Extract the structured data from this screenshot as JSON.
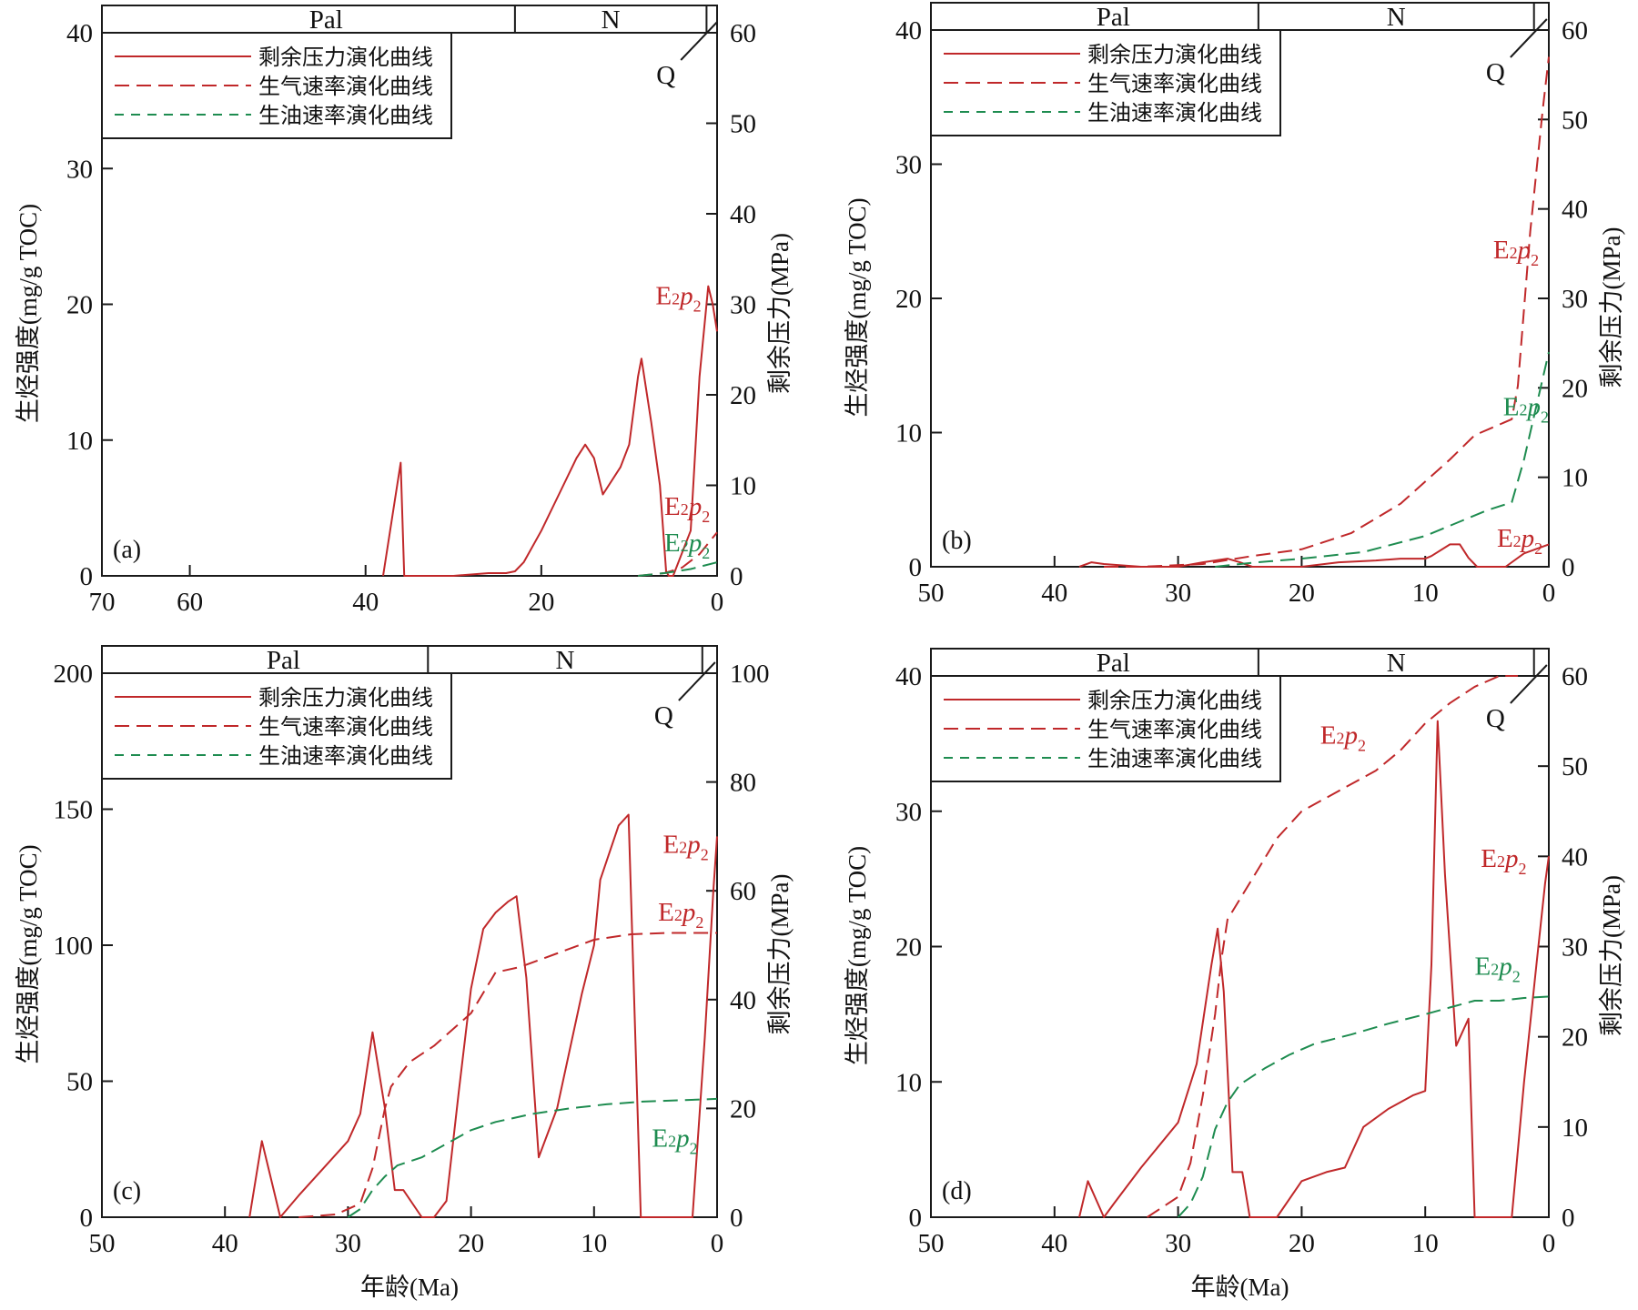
{
  "colors": {
    "pressure": "#c0282a",
    "gas": "#c0282a",
    "oil": "#1e8c50",
    "frame": "#1a1a1a"
  },
  "shared_text": {
    "left_ylabel": "生烃强度(mg/g TOC)",
    "right_ylabel": "剩余压力(MPa)",
    "xlabel": "年龄(Ma)",
    "strip_pal": "Pal",
    "strip_n": "N",
    "strip_q": "Q",
    "legend_pressure": "剩余压力演化曲线",
    "legend_gas": "生气速率演化曲线",
    "legend_oil": "生油速率演化曲线"
  },
  "chart_data": [
    {
      "type": "line",
      "panel_label": "(a)",
      "xlabel": "",
      "left_ylabel": "生烃强度(mg/g TOC)",
      "right_ylabel": "剩余压力(MPa)",
      "xlim": [
        70,
        0
      ],
      "xticks": [
        70,
        60,
        40,
        20,
        0
      ],
      "ylim_left": [
        0,
        40
      ],
      "yticks_left": [
        0,
        10,
        20,
        30,
        40
      ],
      "ylim_right": [
        0,
        60
      ],
      "yticks_right": [
        0,
        10,
        20,
        30,
        40,
        50,
        60
      ],
      "strip": [
        {
          "label": "Pal",
          "from": 66,
          "to": 23
        },
        {
          "label": "N",
          "from": 23,
          "to": 1.2
        },
        {
          "label": "",
          "from": 1.2,
          "to": 0
        }
      ],
      "legend": "top-left",
      "series": [
        {
          "name": "剩余压力演化曲线",
          "style": "solid",
          "color": "pressure",
          "axis": "right",
          "x": [
            38,
            36,
            35.6,
            33,
            30,
            26,
            24,
            23,
            22,
            20,
            18,
            16,
            15,
            14,
            13,
            11,
            10,
            9,
            8.6,
            7.5,
            6.5,
            5.8,
            5.5,
            5,
            3,
            2,
            1,
            0.5,
            0
          ],
          "y": [
            0,
            12.5,
            0,
            0,
            0,
            0.3,
            0.3,
            0.5,
            1.5,
            5,
            9,
            13,
            14.5,
            13,
            9,
            12,
            14.5,
            22,
            24,
            17,
            10,
            0.5,
            0,
            0,
            5,
            22,
            32,
            30,
            27
          ]
        },
        {
          "name": "生气速率演化曲线",
          "style": "dashed",
          "color": "gas",
          "axis": "left",
          "x": [
            9,
            6,
            4,
            2,
            0
          ],
          "y": [
            0,
            0.2,
            0.6,
            1.6,
            3.2
          ]
        },
        {
          "name": "生油速率演化曲线",
          "style": "dashed",
          "color": "oil",
          "axis": "left",
          "x": [
            9,
            6,
            3,
            0
          ],
          "y": [
            0,
            0.2,
            0.5,
            1.0
          ]
        }
      ],
      "annotations": [
        {
          "base": "E",
          "sub": "2",
          "italic": "p",
          "sub2": "2",
          "color": "pressure",
          "x": 7,
          "y": 30,
          "axis": "right"
        },
        {
          "base": "E",
          "sub": "2",
          "italic": "p",
          "sub2": "2",
          "color": "gas",
          "x": 6,
          "y": 4.5,
          "axis": "left"
        },
        {
          "base": "E",
          "sub": "2",
          "italic": "p",
          "sub2": "2",
          "color": "oil",
          "x": 6,
          "y": 1.8,
          "axis": "left"
        }
      ]
    },
    {
      "type": "line",
      "panel_label": "(b)",
      "xlabel": "",
      "left_ylabel": "生烃强度(mg/g TOC)",
      "right_ylabel": "剩余压力(MPa)",
      "xlim": [
        50,
        0
      ],
      "xticks": [
        50,
        40,
        30,
        20,
        10,
        0
      ],
      "ylim_left": [
        0,
        40
      ],
      "yticks_left": [
        0,
        10,
        20,
        30,
        40
      ],
      "ylim_right": [
        0,
        60
      ],
      "yticks_right": [
        0,
        10,
        20,
        30,
        40,
        50,
        60
      ],
      "strip": [
        {
          "label": "Pal",
          "from": 47,
          "to": 23.5
        },
        {
          "label": "N",
          "from": 23.5,
          "to": 1.2
        },
        {
          "label": "",
          "from": 1.2,
          "to": 0
        }
      ],
      "legend": "top-left",
      "series": [
        {
          "name": "剩余压力演化曲线",
          "style": "solid",
          "color": "pressure",
          "axis": "right",
          "x": [
            38,
            37,
            36,
            33,
            30,
            28,
            26,
            25,
            24,
            22,
            20,
            17,
            14,
            12,
            10,
            9.5,
            8,
            7.2,
            6.5,
            5.8,
            3.5,
            2,
            0
          ],
          "y": [
            0,
            0.5,
            0.3,
            0,
            0,
            0.5,
            0.9,
            0.5,
            0,
            0,
            0,
            0.5,
            0.7,
            0.9,
            0.9,
            1.2,
            2.5,
            2.5,
            1,
            0,
            0,
            1.5,
            2.5
          ]
        },
        {
          "name": "生气速率演化曲线",
          "style": "dashed",
          "color": "gas",
          "axis": "left",
          "x": [
            36,
            33,
            28,
            24,
            20,
            16,
            12,
            8,
            6,
            3,
            2.5,
            1.5,
            0.5,
            0
          ],
          "y": [
            0,
            0,
            0.2,
            0.8,
            1.3,
            2.5,
            4.7,
            8,
            9.8,
            11,
            13.5,
            25,
            34,
            38
          ]
        },
        {
          "name": "生油速率演化曲线",
          "style": "dashed",
          "color": "oil",
          "axis": "left",
          "x": [
            27,
            24,
            20,
            15,
            10,
            5,
            3,
            2,
            1,
            0
          ],
          "y": [
            0,
            0.3,
            0.6,
            1.1,
            2.3,
            4.2,
            4.8,
            8,
            12,
            16
          ]
        }
      ],
      "annotations": [
        {
          "base": "E",
          "sub": "2",
          "italic": "p",
          "sub2": "2",
          "color": "gas",
          "x": 4.5,
          "y": 23,
          "axis": "left"
        },
        {
          "base": "E",
          "sub": "2",
          "italic": "p",
          "sub2": "2",
          "color": "oil",
          "x": 3.7,
          "y": 11.3,
          "axis": "left"
        },
        {
          "base": "E",
          "sub": "2",
          "italic": "p",
          "sub2": "2",
          "color": "pressure",
          "x": 4.2,
          "y": 1.5,
          "axis": "left"
        }
      ]
    },
    {
      "type": "line",
      "panel_label": "(c)",
      "xlabel": "年龄(Ma)",
      "left_ylabel": "生烃强度(mg/g TOC)",
      "right_ylabel": "剩余压力(MPa)",
      "xlim": [
        50,
        0
      ],
      "xticks": [
        50,
        40,
        30,
        20,
        10,
        0
      ],
      "ylim_left": [
        0,
        200
      ],
      "yticks_left": [
        0,
        50,
        100,
        150,
        200
      ],
      "ylim_right": [
        0,
        100
      ],
      "yticks_right": [
        0,
        20,
        40,
        60,
        80,
        100
      ],
      "strip": [
        {
          "label": "Pal",
          "from": 47,
          "to": 23.5
        },
        {
          "label": "N",
          "from": 23.5,
          "to": 1.2
        },
        {
          "label": "",
          "from": 1.2,
          "to": 0
        }
      ],
      "legend": "top-left",
      "series": [
        {
          "name": "剩余压力演化曲线",
          "style": "solid",
          "color": "pressure",
          "axis": "right",
          "x": [
            38,
            37,
            35.5,
            34,
            32,
            30,
            29,
            28,
            27,
            26.2,
            25.5,
            24,
            23,
            22,
            21,
            20,
            19,
            18,
            17,
            16.3,
            15.5,
            14.5,
            13,
            11,
            10,
            9.5,
            8,
            7.2,
            6.2,
            2,
            1,
            0.3,
            0
          ],
          "y": [
            0,
            14,
            0,
            4,
            9,
            14,
            19,
            34,
            20,
            5,
            5,
            0,
            0,
            3,
            23,
            42,
            53,
            56,
            58,
            59,
            44,
            11,
            20,
            41,
            50,
            62,
            72,
            74,
            0,
            0,
            33,
            60,
            70
          ]
        },
        {
          "name": "生气速率演化曲线",
          "style": "dashed",
          "color": "gas",
          "axis": "left",
          "x": [
            34,
            31,
            29,
            28,
            27,
            26.5,
            25,
            23,
            20,
            18,
            16,
            13,
            10,
            7,
            4,
            0
          ],
          "y": [
            0,
            1,
            5,
            18,
            40,
            48,
            57,
            63,
            75,
            90,
            92,
            97,
            102,
            104,
            104.5,
            104.5
          ]
        },
        {
          "name": "生油速率演化曲线",
          "style": "dashed",
          "color": "oil",
          "axis": "left",
          "x": [
            30,
            29,
            28,
            27,
            26,
            24,
            22,
            20,
            18,
            15,
            12,
            9,
            6,
            3,
            0
          ],
          "y": [
            0,
            3,
            10,
            15,
            19,
            22,
            27,
            32,
            35,
            38,
            40,
            41.5,
            42.5,
            43,
            43.5
          ]
        }
      ],
      "annotations": [
        {
          "base": "E",
          "sub": "2",
          "italic": "p",
          "sub2": "2",
          "color": "pressure",
          "x": 4.4,
          "y": 67,
          "axis": "right"
        },
        {
          "base": "E",
          "sub": "2",
          "italic": "p",
          "sub2": "2",
          "color": "gas",
          "x": 4.8,
          "y": 109,
          "axis": "left"
        },
        {
          "base": "E",
          "sub": "2",
          "italic": "p",
          "sub2": "2",
          "color": "oil",
          "x": 5.3,
          "y": 26,
          "axis": "left"
        }
      ]
    },
    {
      "type": "line",
      "panel_label": "(d)",
      "xlabel": "年龄(Ma)",
      "left_ylabel": "生烃强度(mg/g TOC)",
      "right_ylabel": "剩余压力(MPa)",
      "xlim": [
        50,
        0
      ],
      "xticks": [
        50,
        40,
        30,
        20,
        10,
        0
      ],
      "ylim_left": [
        0,
        40
      ],
      "yticks_left": [
        0,
        10,
        20,
        30,
        40
      ],
      "ylim_right": [
        0,
        60
      ],
      "yticks_right": [
        0,
        10,
        20,
        30,
        40,
        50,
        60
      ],
      "strip": [
        {
          "label": "Pal",
          "from": 47,
          "to": 23.5
        },
        {
          "label": "N",
          "from": 23.5,
          "to": 1.2
        },
        {
          "label": "",
          "from": 1.2,
          "to": 0
        }
      ],
      "legend": "top-left",
      "series": [
        {
          "name": "剩余压力演化曲线",
          "style": "solid",
          "color": "pressure",
          "axis": "right",
          "x": [
            38,
            37.3,
            36,
            35.2,
            33,
            30,
            28.5,
            27.3,
            26.8,
            26.3,
            25.6,
            24.8,
            24.2,
            22,
            20,
            18,
            16.5,
            15,
            13,
            11,
            10,
            9.5,
            9,
            8.4,
            7.5,
            6.5,
            6,
            3,
            2,
            1,
            0.3,
            0
          ],
          "y": [
            0,
            4,
            0,
            1.5,
            5.5,
            10.5,
            17,
            28,
            32,
            25,
            5,
            5,
            0,
            0,
            4,
            5,
            5.5,
            10,
            12,
            13.5,
            14,
            28,
            55,
            38,
            19,
            22,
            0,
            0,
            15,
            28,
            37,
            40
          ]
        },
        {
          "name": "生气速率演化曲线",
          "style": "dashed",
          "color": "gas",
          "axis": "left",
          "x": [
            32.5,
            30,
            29,
            28,
            27,
            26.5,
            26,
            25,
            24,
            22,
            20,
            18,
            16,
            14,
            12,
            10,
            8,
            6,
            4,
            2.5
          ],
          "y": [
            0,
            1.5,
            4,
            9,
            15,
            19,
            22,
            23.5,
            25,
            28,
            30,
            31,
            32,
            33,
            34.5,
            36.5,
            38,
            39.2,
            40,
            40
          ]
        },
        {
          "name": "生油速率演化曲线",
          "style": "dashed",
          "color": "oil",
          "axis": "left",
          "x": [
            30,
            29,
            28,
            27,
            26,
            25,
            23,
            21,
            19,
            16,
            13,
            10,
            8,
            6,
            4,
            2,
            0
          ],
          "y": [
            0,
            1,
            3,
            6.5,
            8.5,
            9.8,
            11,
            12,
            12.8,
            13.5,
            14.3,
            15,
            15.5,
            16,
            16,
            16.2,
            16.3
          ]
        }
      ],
      "annotations": [
        {
          "base": "E",
          "sub": "2",
          "italic": "p",
          "sub2": "2",
          "color": "gas",
          "x": 18.5,
          "y": 35,
          "axis": "left"
        },
        {
          "base": "E",
          "sub": "2",
          "italic": "p",
          "sub2": "2",
          "color": "pressure",
          "x": 5.5,
          "y": 38.8,
          "axis": "right"
        },
        {
          "base": "E",
          "sub": "2",
          "italic": "p",
          "sub2": "2",
          "color": "oil",
          "x": 6,
          "y": 17.9,
          "axis": "left"
        }
      ]
    }
  ]
}
